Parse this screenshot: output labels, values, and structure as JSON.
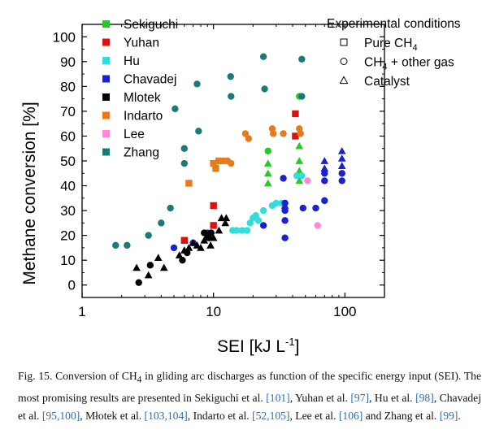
{
  "chart_data": {
    "type": "scatter",
    "xlabel": "SEI   [kJ L",
    "xlabel_sup": "-1",
    "xlabel_end": "]",
    "ylabel": "Methane conversion   [%]",
    "xscale": "log",
    "xlim": [
      1,
      200
    ],
    "ylim": [
      -5,
      105
    ],
    "x_ticks": [
      1,
      10,
      100
    ],
    "x_tick_labels": [
      "1",
      "10",
      "100"
    ],
    "y_ticks": [
      0,
      10,
      20,
      30,
      40,
      50,
      60,
      70,
      80,
      90,
      100
    ],
    "y_tick_labels": [
      "0",
      "10",
      "20",
      "30",
      "40",
      "50",
      "60",
      "70",
      "80",
      "90",
      "100"
    ],
    "legend_placement": "top-left",
    "series": [
      {
        "name": "Sekiguchi",
        "color": "#22cc22",
        "points": [
          {
            "x": 26,
            "y": 54,
            "m": "circle"
          },
          {
            "x": 26,
            "y": 49,
            "m": "triangle"
          },
          {
            "x": 26,
            "y": 45,
            "m": "triangle"
          },
          {
            "x": 26,
            "y": 41,
            "m": "triangle"
          },
          {
            "x": 45,
            "y": 56,
            "m": "triangle"
          },
          {
            "x": 45,
            "y": 50,
            "m": "triangle"
          },
          {
            "x": 45,
            "y": 46,
            "m": "triangle"
          },
          {
            "x": 45,
            "y": 42,
            "m": "triangle"
          },
          {
            "x": 45,
            "y": 76,
            "m": "circle"
          }
        ]
      },
      {
        "name": "Yuhan",
        "color": "#dd1111",
        "points": [
          {
            "x": 6,
            "y": 18,
            "m": "square"
          },
          {
            "x": 10,
            "y": 32,
            "m": "square"
          },
          {
            "x": 10,
            "y": 24,
            "m": "square"
          },
          {
            "x": 42,
            "y": 69,
            "m": "square"
          },
          {
            "x": 42,
            "y": 60,
            "m": "square"
          }
        ]
      },
      {
        "name": "Hu",
        "color": "#33dddd",
        "points": [
          {
            "x": 14,
            "y": 22,
            "m": "circle"
          },
          {
            "x": 15,
            "y": 22,
            "m": "circle"
          },
          {
            "x": 16.5,
            "y": 22,
            "m": "circle"
          },
          {
            "x": 18,
            "y": 22,
            "m": "circle"
          },
          {
            "x": 19,
            "y": 25,
            "m": "circle"
          },
          {
            "x": 20,
            "y": 27,
            "m": "circle"
          },
          {
            "x": 21,
            "y": 28,
            "m": "circle"
          },
          {
            "x": 22,
            "y": 26,
            "m": "circle"
          },
          {
            "x": 24,
            "y": 30,
            "m": "circle"
          },
          {
            "x": 28,
            "y": 32,
            "m": "circle"
          },
          {
            "x": 30,
            "y": 33,
            "m": "circle"
          },
          {
            "x": 33,
            "y": 33,
            "m": "circle"
          },
          {
            "x": 43,
            "y": 44,
            "m": "circle"
          },
          {
            "x": 47,
            "y": 44,
            "m": "circle"
          }
        ]
      },
      {
        "name": "Chavadej",
        "color": "#1a22cc",
        "points": [
          {
            "x": 5,
            "y": 15,
            "m": "circle"
          },
          {
            "x": 7,
            "y": 17,
            "m": "circle"
          },
          {
            "x": 9,
            "y": 21,
            "m": "circle"
          },
          {
            "x": 24,
            "y": 24,
            "m": "circle"
          },
          {
            "x": 34,
            "y": 43,
            "m": "circle"
          },
          {
            "x": 35,
            "y": 33,
            "m": "circle"
          },
          {
            "x": 35,
            "y": 30,
            "m": "circle"
          },
          {
            "x": 35,
            "y": 26,
            "m": "circle"
          },
          {
            "x": 35,
            "y": 19,
            "m": "circle"
          },
          {
            "x": 48,
            "y": 31,
            "m": "circle"
          },
          {
            "x": 60,
            "y": 31,
            "m": "circle"
          },
          {
            "x": 70,
            "y": 34,
            "m": "circle"
          },
          {
            "x": 70,
            "y": 45,
            "m": "circle"
          },
          {
            "x": 70,
            "y": 42,
            "m": "circle"
          },
          {
            "x": 95,
            "y": 45,
            "m": "circle"
          },
          {
            "x": 95,
            "y": 42,
            "m": "circle"
          },
          {
            "x": 35,
            "y": 32,
            "m": "triangle"
          },
          {
            "x": 70,
            "y": 50,
            "m": "triangle"
          },
          {
            "x": 70,
            "y": 47,
            "m": "triangle"
          },
          {
            "x": 95,
            "y": 54,
            "m": "triangle"
          },
          {
            "x": 95,
            "y": 51,
            "m": "triangle"
          },
          {
            "x": 95,
            "y": 48,
            "m": "triangle"
          }
        ]
      },
      {
        "name": "Mlotek",
        "color": "#000000",
        "points": [
          {
            "x": 2.6,
            "y": 7,
            "m": "triangle"
          },
          {
            "x": 3.2,
            "y": 4,
            "m": "triangle"
          },
          {
            "x": 3.8,
            "y": 11,
            "m": "triangle"
          },
          {
            "x": 4.2,
            "y": 7,
            "m": "triangle"
          },
          {
            "x": 5.5,
            "y": 12,
            "m": "triangle"
          },
          {
            "x": 6,
            "y": 14,
            "m": "triangle"
          },
          {
            "x": 6.5,
            "y": 15,
            "m": "triangle"
          },
          {
            "x": 7,
            "y": 17,
            "m": "triangle"
          },
          {
            "x": 7.5,
            "y": 16,
            "m": "triangle"
          },
          {
            "x": 8,
            "y": 15,
            "m": "triangle"
          },
          {
            "x": 8.5,
            "y": 18,
            "m": "triangle"
          },
          {
            "x": 9,
            "y": 20,
            "m": "triangle"
          },
          {
            "x": 9.5,
            "y": 16,
            "m": "triangle"
          },
          {
            "x": 10,
            "y": 19,
            "m": "triangle"
          },
          {
            "x": 11,
            "y": 22,
            "m": "triangle"
          },
          {
            "x": 11.5,
            "y": 27,
            "m": "triangle"
          },
          {
            "x": 12.3,
            "y": 25,
            "m": "triangle"
          },
          {
            "x": 12.5,
            "y": 27,
            "m": "triangle"
          },
          {
            "x": 2.7,
            "y": 1,
            "m": "circle"
          },
          {
            "x": 3.3,
            "y": 8,
            "m": "circle"
          },
          {
            "x": 5.8,
            "y": 10,
            "m": "circle"
          },
          {
            "x": 6.3,
            "y": 13,
            "m": "circle"
          },
          {
            "x": 8.5,
            "y": 21,
            "m": "circle"
          },
          {
            "x": 9.2,
            "y": 19,
            "m": "circle"
          },
          {
            "x": 9.6,
            "y": 21,
            "m": "circle"
          }
        ]
      },
      {
        "name": "Indarto",
        "color": "#e87a18",
        "points": [
          {
            "x": 6.5,
            "y": 41,
            "m": "square"
          },
          {
            "x": 10,
            "y": 49,
            "m": "square"
          },
          {
            "x": 10.4,
            "y": 47,
            "m": "square"
          },
          {
            "x": 11,
            "y": 50,
            "m": "square"
          },
          {
            "x": 12,
            "y": 50,
            "m": "circle"
          },
          {
            "x": 12.8,
            "y": 50,
            "m": "circle"
          },
          {
            "x": 13.6,
            "y": 49,
            "m": "circle"
          },
          {
            "x": 17.5,
            "y": 61,
            "m": "circle"
          },
          {
            "x": 18.5,
            "y": 59,
            "m": "circle"
          },
          {
            "x": 28,
            "y": 63,
            "m": "circle"
          },
          {
            "x": 28.5,
            "y": 61,
            "m": "circle"
          },
          {
            "x": 34,
            "y": 61,
            "m": "circle"
          },
          {
            "x": 45,
            "y": 63,
            "m": "circle"
          },
          {
            "x": 46,
            "y": 61,
            "m": "circle"
          }
        ]
      },
      {
        "name": "Lee",
        "color": "#ff88dd",
        "points": [
          {
            "x": 52,
            "y": 42,
            "m": "circle"
          },
          {
            "x": 62,
            "y": 24,
            "m": "circle"
          }
        ]
      },
      {
        "name": "Zhang",
        "color": "#1a7a7a",
        "points": [
          {
            "x": 1.8,
            "y": 16,
            "m": "circle"
          },
          {
            "x": 2.2,
            "y": 16,
            "m": "circle"
          },
          {
            "x": 3.2,
            "y": 20,
            "m": "circle"
          },
          {
            "x": 4,
            "y": 25,
            "m": "circle"
          },
          {
            "x": 4.7,
            "y": 31,
            "m": "circle"
          },
          {
            "x": 5.1,
            "y": 71,
            "m": "circle"
          },
          {
            "x": 6,
            "y": 55,
            "m": "circle"
          },
          {
            "x": 6,
            "y": 49,
            "m": "circle"
          },
          {
            "x": 7.5,
            "y": 81,
            "m": "circle"
          },
          {
            "x": 7.7,
            "y": 62,
            "m": "circle"
          },
          {
            "x": 13.5,
            "y": 84,
            "m": "circle"
          },
          {
            "x": 13.6,
            "y": 76,
            "m": "circle"
          },
          {
            "x": 24,
            "y": 92,
            "m": "circle"
          },
          {
            "x": 24.5,
            "y": 79,
            "m": "circle"
          },
          {
            "x": 47,
            "y": 91,
            "m": "circle"
          },
          {
            "x": 47,
            "y": 76,
            "m": "circle"
          }
        ]
      }
    ]
  },
  "legend": {
    "conditions_title": "Experimental conditions",
    "conditions": [
      {
        "symbol": "square",
        "text": "Pure CH",
        "sub": "4",
        "after": ""
      },
      {
        "symbol": "circle",
        "text": "CH",
        "sub": "4",
        "after": " + other gas"
      },
      {
        "symbol": "triangle",
        "text": "Catalyst",
        "sub": "",
        "after": ""
      }
    ]
  },
  "caption": {
    "lead": "Fig. 15.",
    "text_1": " Conversion of CH",
    "sub_1": "4",
    "text_2": " in gliding arc discharges as function of the specific energy input (SEI). The most promising results are presented in Sekiguchi et al. ",
    "ref_1": "[101]",
    "text_3": ", Yuhan et al. ",
    "ref_2": "[97]",
    "text_4": ", Hu et al. ",
    "ref_3": "[98]",
    "text_5": ", Chavadej et al. ",
    "ref_4": "[95,100]",
    "text_6": ", Młotek et al. ",
    "ref_5": "[103,104]",
    "text_7": ", Indarto et al. ",
    "ref_6": "[52,105]",
    "text_8": ", Lee et al. ",
    "ref_7": "[106]",
    "text_9": " and Zhang et al. ",
    "ref_8": "[99]",
    "text_10": "."
  }
}
